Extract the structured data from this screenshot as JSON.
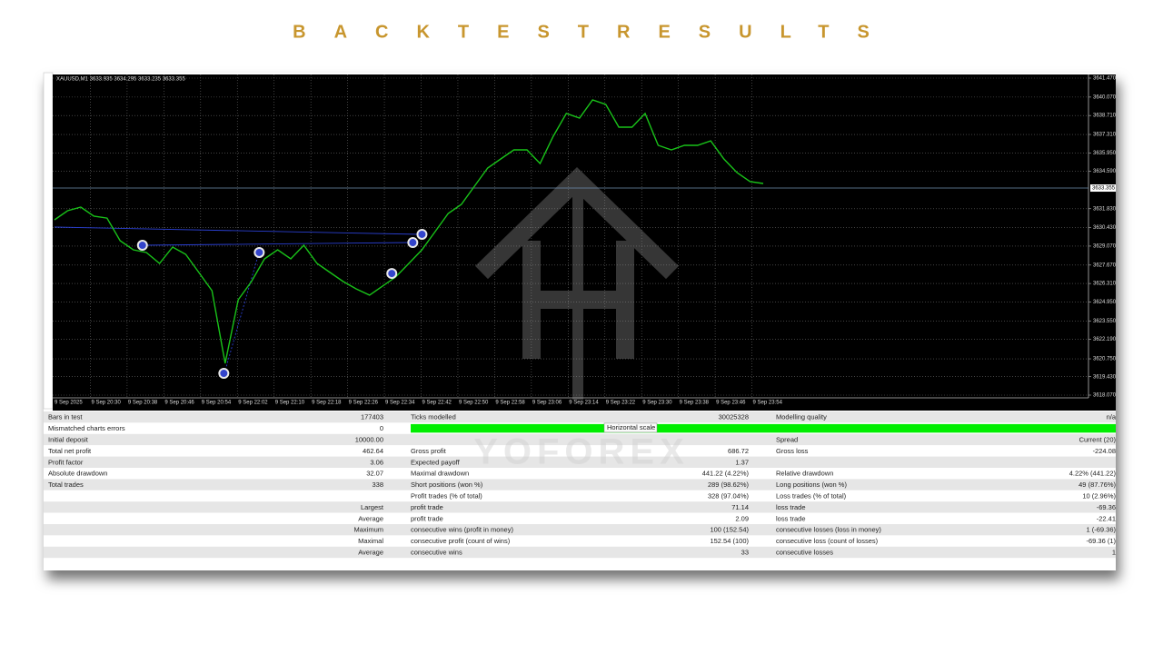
{
  "title": "BACKTESTRESULTS",
  "chart_data": {
    "type": "line",
    "header": "XAUUSD,M1  3633.935 3634.295 3633.235 3633.355",
    "ylim": [
      3618.07,
      3641.47
    ],
    "yticks": [
      {
        "value": 3641.47,
        "label": "3641.470"
      },
      {
        "value": 3640.07,
        "label": "3640.070"
      },
      {
        "value": 3638.71,
        "label": "3638.710"
      },
      {
        "value": 3637.31,
        "label": "3637.310"
      },
      {
        "value": 3635.95,
        "label": "3635.950"
      },
      {
        "value": 3634.59,
        "label": "3634.590"
      },
      {
        "value": 3631.83,
        "label": "3631.830"
      },
      {
        "value": 3630.43,
        "label": "3630.430"
      },
      {
        "value": 3629.07,
        "label": "3629.070"
      },
      {
        "value": 3627.67,
        "label": "3627.670"
      },
      {
        "value": 3626.31,
        "label": "3626.310"
      },
      {
        "value": 3624.95,
        "label": "3624.950"
      },
      {
        "value": 3623.55,
        "label": "3623.550"
      },
      {
        "value": 3622.19,
        "label": "3622.190"
      },
      {
        "value": 3620.75,
        "label": "3620.750"
      },
      {
        "value": 3619.43,
        "label": "3619.430"
      },
      {
        "value": 3618.07,
        "label": "3618.070"
      }
    ],
    "current_price": 3633.355,
    "grid": true,
    "color": "#19c219",
    "time_labels": [
      "9 Sep 2025",
      "9 Sep 20:30",
      "9 Sep 20:38",
      "9 Sep 20:46",
      "9 Sep 20:54",
      "9 Sep 22:02",
      "9 Sep 22:10",
      "9 Sep 22:18",
      "9 Sep 22:26",
      "9 Sep 22:34",
      "9 Sep 22:42",
      "9 Sep 22:50",
      "9 Sep 22:58",
      "9 Sep 23:06",
      "9 Sep 23:14",
      "9 Sep 23:22",
      "9 Sep 23:30",
      "9 Sep 23:38",
      "9 Sep 23:46",
      "9 Sep 23:54"
    ],
    "values": [
      3631.01,
      3631.68,
      3631.95,
      3631.28,
      3631.14,
      3629.47,
      3628.8,
      3628.6,
      3627.79,
      3629.0,
      3628.46,
      3627.12,
      3625.78,
      3620.42,
      3625.11,
      3626.45,
      3628.13,
      3628.8,
      3628.13,
      3629.13,
      3627.79,
      3627.12,
      3626.45,
      3625.91,
      3625.45,
      3626.12,
      3626.79,
      3627.79,
      3628.8,
      3630.14,
      3631.48,
      3632.15,
      3633.49,
      3634.83,
      3635.5,
      3636.17,
      3636.17,
      3635.17,
      3637.18,
      3638.86,
      3638.52,
      3639.86,
      3639.53,
      3637.85,
      3637.85,
      3638.86,
      3636.51,
      3636.17,
      3636.51,
      3636.51,
      3636.84,
      3635.5,
      3634.5,
      3633.83,
      3633.69
    ],
    "trades": {
      "x": [
        6.7,
        12.9,
        15.6,
        25.7,
        27.3,
        28
      ],
      "y": [
        3629.13,
        3619.68,
        3628.6,
        3627.05,
        3629.33,
        3629.94
      ]
    }
  },
  "watermark": "YOFOREX",
  "tooltip": "Horizontal scale",
  "report": {
    "rows": [
      [
        "Bars in test",
        "177403",
        "Ticks modelled",
        "30025328",
        "Modelling quality",
        "n/a"
      ],
      [
        "Mismatched charts errors",
        "0",
        null,
        null,
        null,
        null
      ],
      [
        "Initial deposit",
        "10000.00",
        null,
        null,
        "Spread",
        "Current (20)"
      ],
      [
        "Total net profit",
        "462.64",
        "Gross profit",
        "686.72",
        "Gross loss",
        "-224.08"
      ],
      [
        "Profit factor",
        "3.06",
        "Expected payoff",
        "1.37",
        null,
        null
      ],
      [
        "Absolute drawdown",
        "32.07",
        "Maximal drawdown",
        "441.22 (4.22%)",
        "Relative drawdown",
        "4.22% (441.22)"
      ],
      [
        "Total trades",
        "338",
        "Short positions (won %)",
        "289 (98.62%)",
        "Long positions (won %)",
        "49 (87.76%)"
      ],
      [
        null,
        null,
        "Profit trades (% of total)",
        "328 (97.04%)",
        "Loss trades (% of total)",
        "10 (2.96%)"
      ],
      [
        null,
        "Largest",
        "profit trade",
        "71.14",
        "loss trade",
        "-69.36"
      ],
      [
        null,
        "Average",
        "profit trade",
        "2.09",
        "loss trade",
        "-22.41"
      ],
      [
        null,
        "Maximum",
        "consecutive wins (profit in money)",
        "100 (152.54)",
        "consecutive losses (loss in money)",
        "1 (-69.36)"
      ],
      [
        null,
        "Maximal",
        "consecutive profit (count of wins)",
        "152.54 (100)",
        "consecutive loss (count of losses)",
        "-69.36 (1)"
      ],
      [
        null,
        "Average",
        "consecutive wins",
        "33",
        "consecutive losses",
        "1"
      ]
    ]
  }
}
